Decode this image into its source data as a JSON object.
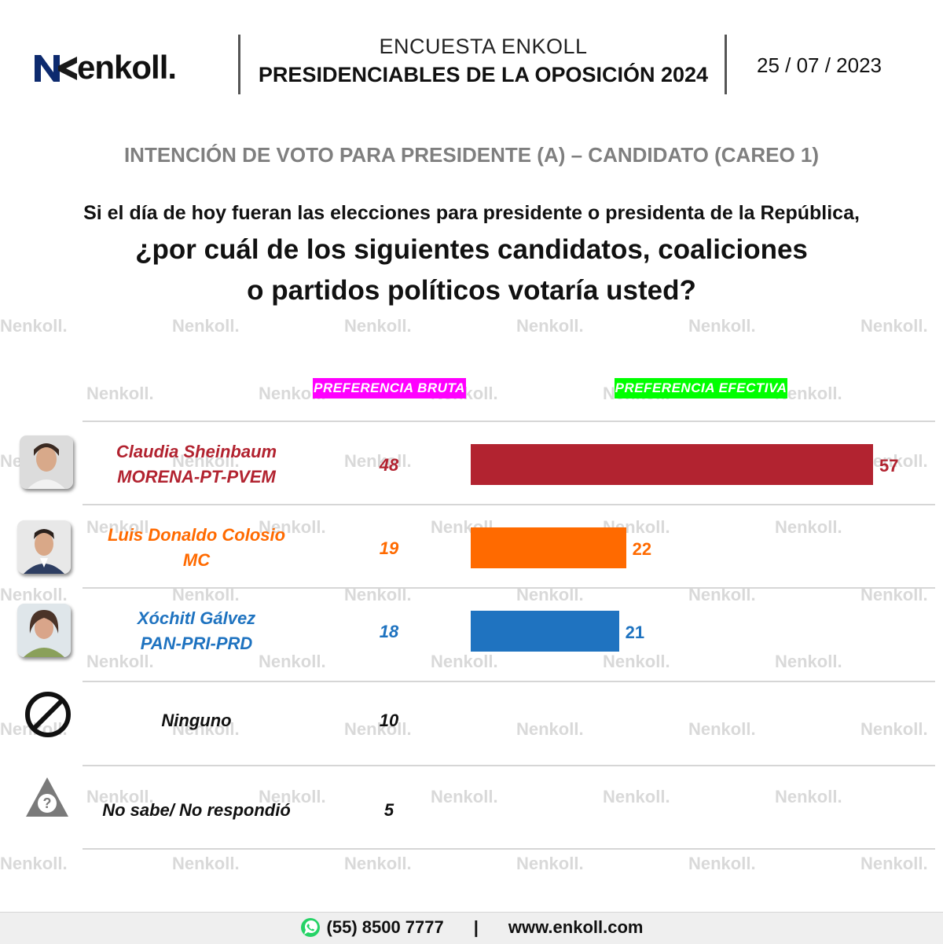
{
  "header": {
    "brand": "enkoll.",
    "title_line1": "ENCUESTA ENKOLL",
    "title_line2": "PRESIDENCIABLES DE LA OPOSICIÓN 2024",
    "date": "25 / 07 / 2023"
  },
  "section_title": "INTENCIÓN DE VOTO PARA PRESIDENTE (A) – CANDIDATO (CAREO 1)",
  "question": {
    "line1": "Si el día de hoy fueran las elecciones para presidente o presidenta de la República,",
    "line2": "¿por cuál de los siguientes candidatos, coaliciones",
    "line3": "o partidos políticos votaría usted?"
  },
  "watermark_text": "enkoll.",
  "columns": {
    "gross_label": "PREFERENCIA BRUTA",
    "gross_color": "#ff00ff",
    "effective_label": "PREFERENCIA EFECTIVA",
    "effective_color": "#00ff00"
  },
  "chart_data": {
    "type": "bar",
    "orientation": "horizontal",
    "title": "INTENCIÓN DE VOTO PARA PRESIDENTE (A) – CANDIDATO (CAREO 1)",
    "categories": [
      "Claudia Sheinbaum MORENA-PT-PVEM",
      "Luis Donaldo Colosio MC",
      "Xóchitl Gálvez PAN-PRI-PRD",
      "Ninguno",
      "No sabe/ No respondió"
    ],
    "series": [
      {
        "name": "PREFERENCIA BRUTA",
        "values": [
          48,
          19,
          18,
          10,
          5
        ]
      },
      {
        "name": "PREFERENCIA EFECTIVA",
        "values": [
          57,
          22,
          21,
          null,
          null
        ]
      }
    ],
    "xlim": [
      0,
      57
    ],
    "grid": false
  },
  "rows": [
    {
      "name": "Claudia Sheinbaum",
      "party": "MORENA-PT-PVEM",
      "gross": "48",
      "effective": 57,
      "effective_label": "57",
      "color": "#b22330",
      "avatar": "candidate-photo-sheinbaum"
    },
    {
      "name": "Luis Donaldo Colosio",
      "party": "MC",
      "gross": "19",
      "effective": 22,
      "effective_label": "22",
      "color": "#ff6a00",
      "avatar": "candidate-photo-colosio"
    },
    {
      "name": "Xóchitl Gálvez",
      "party": "PAN-PRI-PRD",
      "gross": "18",
      "effective": 21,
      "effective_label": "21",
      "color": "#1f73c0",
      "avatar": "candidate-photo-galvez"
    },
    {
      "name": "Ninguno",
      "gross": "10",
      "color": "#111111",
      "icon": "prohibited-icon"
    },
    {
      "name": "No sabe/ No respondió",
      "gross": "5",
      "color": "#111111",
      "icon": "question-warning-icon"
    }
  ],
  "footer": {
    "phone": "(55) 8500 7777",
    "separator": "|",
    "website": "www.enkoll.com",
    "icon": "whatsapp-icon"
  }
}
